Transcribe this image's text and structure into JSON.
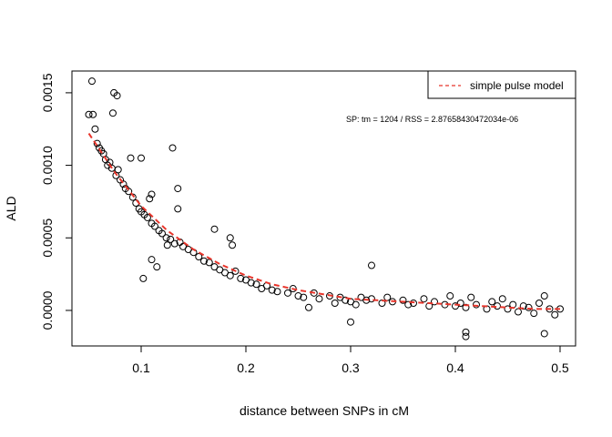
{
  "chart_data": {
    "type": "scatter",
    "xlabel": "distance between SNPs in cM",
    "ylabel": "ALD",
    "annotation": "SP:  tm =  1204 / RSS =  2.87658430472034e-06",
    "xlim": [
      0.0339,
      0.5148
    ],
    "ylim": [
      -0.000245,
      0.00165
    ],
    "xticks": [
      0.1,
      0.2,
      0.3,
      0.4,
      0.5
    ],
    "yticks": [
      {
        "value": 0,
        "label": "0.0000"
      },
      {
        "value": 0.0005,
        "label": "0.0005"
      },
      {
        "value": 0.001,
        "label": "0.0010"
      },
      {
        "value": 0.0015,
        "label": "0.0015"
      }
    ],
    "legend_position": "top-right",
    "series": [
      {
        "type": "scatter",
        "color": "#000000",
        "x": [
          0.053,
          0.05,
          0.054,
          0.074,
          0.077,
          0.073,
          0.09,
          0.1,
          0.13,
          0.135,
          0.102,
          0.11,
          0.115,
          0.125,
          0.185,
          0.187,
          0.17,
          0.32,
          0.41,
          0.41,
          0.485,
          0.3,
          0.135,
          0.11,
          0.108,
          0.056,
          0.058,
          0.06,
          0.062,
          0.064,
          0.066,
          0.068,
          0.07,
          0.072,
          0.076,
          0.078,
          0.08,
          0.083,
          0.085,
          0.088,
          0.092,
          0.095,
          0.098,
          0.1,
          0.103,
          0.106,
          0.11,
          0.113,
          0.117,
          0.12,
          0.124,
          0.128,
          0.132,
          0.137,
          0.14,
          0.145,
          0.15,
          0.155,
          0.16,
          0.165,
          0.17,
          0.175,
          0.18,
          0.185,
          0.19,
          0.195,
          0.2,
          0.205,
          0.21,
          0.215,
          0.22,
          0.225,
          0.23,
          0.24,
          0.245,
          0.25,
          0.255,
          0.26,
          0.265,
          0.27,
          0.28,
          0.285,
          0.29,
          0.295,
          0.3,
          0.305,
          0.31,
          0.315,
          0.32,
          0.33,
          0.335,
          0.34,
          0.35,
          0.355,
          0.36,
          0.37,
          0.375,
          0.38,
          0.39,
          0.395,
          0.4,
          0.405,
          0.41,
          0.415,
          0.42,
          0.43,
          0.435,
          0.44,
          0.445,
          0.45,
          0.455,
          0.46,
          0.465,
          0.47,
          0.475,
          0.48,
          0.485,
          0.49,
          0.495,
          0.5
        ],
        "values": [
          0.00158,
          0.00135,
          0.00135,
          0.0015,
          0.00148,
          0.00136,
          0.00105,
          0.00105,
          0.00112,
          0.00084,
          0.00022,
          0.00035,
          0.0003,
          0.00045,
          0.0005,
          0.00045,
          0.00056,
          0.00031,
          -0.00015,
          -0.00018,
          -0.00016,
          -8e-05,
          0.0007,
          0.0008,
          0.00077,
          0.00125,
          0.00115,
          0.00112,
          0.0011,
          0.00108,
          0.00104,
          0.001,
          0.00102,
          0.00098,
          0.00093,
          0.00097,
          0.0009,
          0.00087,
          0.00084,
          0.00082,
          0.00078,
          0.00074,
          0.0007,
          0.00068,
          0.00066,
          0.00064,
          0.0006,
          0.00058,
          0.00055,
          0.00053,
          0.0005,
          0.00049,
          0.00046,
          0.00047,
          0.00044,
          0.00042,
          0.0004,
          0.00037,
          0.00034,
          0.00033,
          0.0003,
          0.00028,
          0.00026,
          0.00024,
          0.00027,
          0.00022,
          0.00021,
          0.00019,
          0.00018,
          0.00015,
          0.00017,
          0.00014,
          0.00013,
          0.00012,
          0.00015,
          0.0001,
          9e-05,
          2e-05,
          0.00012,
          8e-05,
          0.0001,
          5e-05,
          9e-05,
          7e-05,
          6e-05,
          4e-05,
          9e-05,
          7e-05,
          8e-05,
          5e-05,
          9e-05,
          6e-05,
          7e-05,
          4e-05,
          5e-05,
          8e-05,
          3e-05,
          6e-05,
          4e-05,
          0.0001,
          3e-05,
          5e-05,
          2e-05,
          9e-05,
          4e-05,
          1e-05,
          6e-05,
          3e-05,
          8e-05,
          1e-05,
          4e-05,
          -1e-05,
          3e-05,
          2e-05,
          -2e-05,
          5e-05,
          0.0001,
          1e-05,
          -3e-05,
          1e-05
        ]
      },
      {
        "type": "line",
        "name": "simple pulse model",
        "color": "#e8352b",
        "x": [
          0.05,
          0.075,
          0.1,
          0.125,
          0.15,
          0.175,
          0.2,
          0.225,
          0.25,
          0.275,
          0.3,
          0.325,
          0.35,
          0.375,
          0.4,
          0.425,
          0.45,
          0.475,
          0.5
        ],
        "values": [
          0.00122,
          0.00095,
          0.00072,
          0.00055,
          0.00042,
          0.00032,
          0.00024,
          0.00018,
          0.00014,
          0.00011,
          8e-05,
          7e-05,
          6e-05,
          5e-05,
          4e-05,
          3e-05,
          2e-05,
          1e-05,
          1e-05
        ]
      }
    ]
  }
}
